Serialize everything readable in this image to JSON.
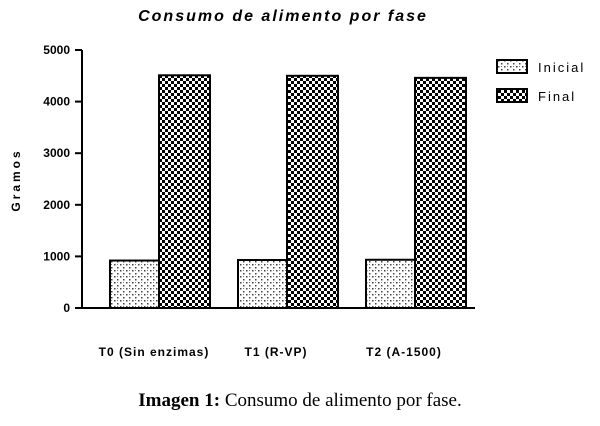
{
  "chart_data": {
    "type": "bar",
    "title": "Consumo de alimento por fase",
    "xlabel": "",
    "ylabel": "Gramos",
    "categories": [
      "T0 (Sin enzimas)",
      "T1 (R-VP)",
      "T2 (A-1500)"
    ],
    "series": [
      {
        "name": "Inicial",
        "values": [
          920,
          930,
          935
        ],
        "pattern": "dotted-checker"
      },
      {
        "name": "Final",
        "values": [
          4510,
          4500,
          4460
        ],
        "pattern": "checkerboard"
      }
    ],
    "ylim": [
      0,
      5000
    ],
    "yticks": [
      "0",
      "1000",
      "2000",
      "3000",
      "4000",
      "5000"
    ],
    "grid": false,
    "legend_position": "top-right"
  },
  "caption": {
    "label": "Imagen 1:",
    "text": " Consumo de alimento por fase."
  }
}
